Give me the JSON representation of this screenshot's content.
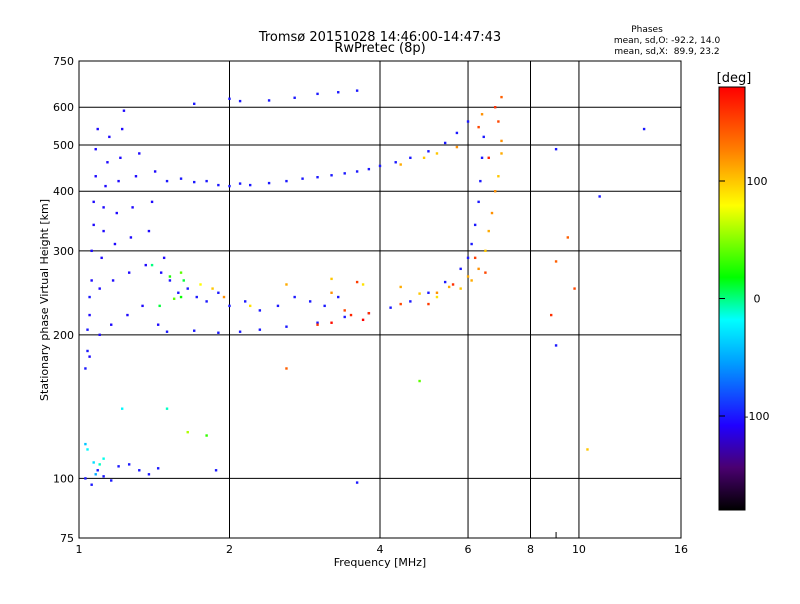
{
  "chart_data": {
    "type": "scatter",
    "title": "Tromsø 20151028 14:46:00-14:47:43",
    "subtitle": "RwPretec (8p)",
    "xlabel": "Frequency [MHz]",
    "ylabel": "Stationary phase Virtual Height [km]",
    "x_scale": "log",
    "y_scale": "log",
    "xlim": [
      1,
      16
    ],
    "ylim": [
      75,
      750
    ],
    "x_ticks": [
      1,
      2,
      4,
      6,
      8,
      10,
      16
    ],
    "x_minor_ticks": [
      9
    ],
    "y_ticks": [
      75,
      100,
      200,
      300,
      400,
      500,
      600,
      750
    ],
    "grid_x": [
      2,
      4,
      6,
      8,
      10
    ],
    "grid_y": [
      100,
      200,
      300,
      400,
      500,
      600
    ],
    "info": {
      "heading": "Phases",
      "line_o": "mean, sd,O: -92.2, 14.0",
      "line_x": "mean, sd,X:  89.9, 23.2"
    },
    "colorbar": {
      "unit": "[deg]",
      "range": [
        -180,
        180
      ],
      "ticks": [
        100,
        0,
        -100
      ],
      "colormap": "rainbow"
    },
    "series": [
      {
        "points": [
          [
            1.05,
            180,
            -105
          ],
          [
            1.05,
            220,
            -105
          ],
          [
            1.06,
            260,
            -105
          ],
          [
            1.06,
            300,
            -105
          ],
          [
            1.07,
            340,
            -105
          ],
          [
            1.07,
            380,
            -105
          ],
          [
            1.08,
            430,
            -105
          ],
          [
            1.08,
            490,
            -105
          ],
          [
            1.09,
            540,
            -105
          ],
          [
            1.1,
            200,
            -105
          ],
          [
            1.1,
            250,
            -105
          ],
          [
            1.11,
            290,
            -105
          ],
          [
            1.12,
            330,
            -105
          ],
          [
            1.12,
            370,
            -105
          ],
          [
            1.13,
            410,
            -105
          ],
          [
            1.14,
            460,
            -105
          ],
          [
            1.15,
            520,
            -105
          ],
          [
            1.16,
            210,
            -105
          ],
          [
            1.17,
            260,
            -105
          ],
          [
            1.18,
            310,
            -105
          ],
          [
            1.19,
            360,
            -105
          ],
          [
            1.2,
            420,
            -105
          ],
          [
            1.21,
            470,
            -105
          ],
          [
            1.22,
            540,
            -105
          ],
          [
            1.23,
            590,
            -105
          ],
          [
            1.25,
            220,
            -105
          ],
          [
            1.26,
            270,
            -105
          ],
          [
            1.27,
            320,
            -105
          ],
          [
            1.28,
            370,
            -105
          ],
          [
            1.3,
            430,
            -105
          ],
          [
            1.32,
            480,
            -105
          ],
          [
            1.34,
            230,
            -105
          ],
          [
            1.36,
            280,
            -105
          ],
          [
            1.38,
            330,
            -105
          ],
          [
            1.4,
            380,
            -105
          ],
          [
            1.42,
            440,
            -105
          ],
          [
            1.44,
            210,
            -105
          ],
          [
            1.46,
            270,
            -105
          ],
          [
            1.48,
            290,
            -105
          ],
          [
            1.03,
            170,
            -100
          ],
          [
            1.04,
            185,
            -100
          ],
          [
            1.04,
            205,
            -100
          ],
          [
            1.05,
            240,
            -100
          ],
          [
            1.52,
            260,
            -100
          ],
          [
            1.58,
            245,
            -100
          ],
          [
            1.65,
            250,
            -100
          ],
          [
            1.72,
            240,
            -100
          ],
          [
            1.8,
            235,
            -100
          ],
          [
            1.9,
            245,
            -100
          ],
          [
            2.0,
            230,
            -100
          ],
          [
            2.15,
            235,
            -100
          ],
          [
            2.3,
            225,
            -100
          ],
          [
            2.5,
            230,
            -100
          ],
          [
            2.7,
            240,
            -100
          ],
          [
            2.9,
            235,
            -100
          ],
          [
            3.1,
            230,
            -100
          ],
          [
            3.3,
            240,
            -100
          ],
          [
            1.5,
            420,
            -100
          ],
          [
            1.6,
            425,
            -100
          ],
          [
            1.7,
            418,
            -100
          ],
          [
            1.8,
            420,
            -100
          ],
          [
            1.9,
            412,
            -100
          ],
          [
            2.0,
            410,
            -100
          ],
          [
            2.1,
            415,
            -100
          ],
          [
            2.2,
            412,
            -100
          ],
          [
            2.4,
            416,
            -100
          ],
          [
            2.6,
            420,
            -100
          ],
          [
            2.8,
            425,
            -100
          ],
          [
            3.0,
            428,
            -100
          ],
          [
            3.2,
            432,
            -100
          ],
          [
            3.4,
            436,
            -100
          ],
          [
            3.6,
            440,
            -100
          ],
          [
            3.8,
            445,
            -100
          ],
          [
            4.0,
            452,
            -100
          ],
          [
            4.3,
            460,
            -100
          ],
          [
            4.6,
            470,
            -100
          ],
          [
            5.0,
            485,
            -100
          ],
          [
            5.4,
            505,
            -100
          ],
          [
            5.7,
            530,
            -100
          ],
          [
            6.0,
            560,
            -100
          ],
          [
            1.7,
            610,
            -100
          ],
          [
            2.0,
            625,
            -100
          ],
          [
            2.1,
            618,
            -100
          ],
          [
            2.4,
            620,
            -100
          ],
          [
            2.7,
            628,
            -100
          ],
          [
            3.0,
            640,
            -100
          ],
          [
            3.3,
            645,
            -100
          ],
          [
            3.6,
            650,
            -100
          ],
          [
            1.5,
            203,
            -100
          ],
          [
            1.7,
            204,
            -100
          ],
          [
            1.9,
            202,
            -100
          ],
          [
            2.1,
            203,
            -100
          ],
          [
            2.3,
            205,
            -100
          ],
          [
            2.6,
            208,
            -100
          ],
          [
            3.0,
            212,
            -100
          ],
          [
            3.4,
            218,
            -100
          ],
          [
            3.8,
            222,
            -100
          ],
          [
            4.2,
            228,
            -100
          ],
          [
            4.6,
            235,
            -100
          ],
          [
            5.0,
            245,
            -100
          ],
          [
            5.4,
            258,
            -100
          ],
          [
            5.8,
            275,
            -100
          ],
          [
            6.0,
            290,
            -100
          ],
          [
            6.1,
            310,
            -100
          ],
          [
            6.2,
            340,
            -100
          ],
          [
            6.3,
            380,
            -100
          ],
          [
            6.35,
            420,
            -100
          ],
          [
            6.4,
            470,
            -100
          ],
          [
            6.45,
            520,
            -100
          ],
          [
            1.03,
            100,
            -100
          ],
          [
            1.06,
            97,
            -100
          ],
          [
            1.09,
            104,
            -100
          ],
          [
            1.12,
            101,
            -100
          ],
          [
            1.16,
            99,
            -100
          ],
          [
            1.2,
            106,
            -100
          ],
          [
            1.26,
            107,
            -100
          ],
          [
            1.32,
            104,
            -100
          ],
          [
            1.38,
            102,
            -100
          ],
          [
            1.44,
            105,
            -100
          ],
          [
            1.88,
            104,
            -100
          ],
          [
            3.6,
            98,
            -100
          ],
          [
            9.0,
            190,
            -100
          ],
          [
            13.5,
            540,
            -100
          ],
          [
            11.0,
            390,
            -100
          ],
          [
            9.0,
            490,
            -100
          ]
        ]
      },
      {
        "points": [
          [
            1.6,
            270,
            40
          ],
          [
            1.62,
            260,
            10
          ],
          [
            1.75,
            255,
            80
          ],
          [
            1.85,
            250,
            100
          ],
          [
            1.95,
            240,
            120
          ],
          [
            2.2,
            230,
            90
          ],
          [
            2.6,
            255,
            110
          ],
          [
            3.2,
            262,
            100
          ],
          [
            3.2,
            245,
            120
          ],
          [
            3.7,
            255,
            90
          ],
          [
            4.4,
            252,
            110
          ],
          [
            4.8,
            244,
            100
          ],
          [
            5.2,
            245,
            120
          ],
          [
            5.5,
            252,
            110
          ],
          [
            6.1,
            260,
            110
          ],
          [
            6.3,
            275,
            120
          ],
          [
            6.5,
            300,
            100
          ],
          [
            6.6,
            330,
            110
          ],
          [
            6.7,
            360,
            120
          ],
          [
            6.8,
            400,
            120
          ],
          [
            6.9,
            430,
            100
          ],
          [
            7.0,
            480,
            110
          ],
          [
            7.0,
            510,
            120
          ],
          [
            6.9,
            560,
            150
          ],
          [
            7.0,
            630,
            140
          ],
          [
            4.4,
            455,
            110
          ],
          [
            4.9,
            470,
            100
          ],
          [
            5.2,
            480,
            100
          ],
          [
            5.7,
            495,
            120
          ],
          [
            6.3,
            545,
            150
          ],
          [
            6.4,
            580,
            120
          ],
          [
            5.2,
            240,
            90
          ],
          [
            5.8,
            250,
            100
          ],
          [
            6.0,
            265,
            110
          ],
          [
            9.0,
            285,
            140
          ],
          [
            9.5,
            320,
            140
          ],
          [
            9.8,
            250,
            150
          ],
          [
            10.4,
            115,
            100
          ]
        ]
      },
      {
        "points": [
          [
            1.45,
            230,
            10
          ],
          [
            1.55,
            238,
            40
          ],
          [
            1.6,
            240,
            20
          ],
          [
            1.65,
            125,
            60
          ],
          [
            1.8,
            123,
            30
          ],
          [
            2.6,
            170,
            140
          ],
          [
            4.8,
            160,
            40
          ],
          [
            1.4,
            280,
            0
          ],
          [
            1.52,
            265,
            25
          ]
        ]
      },
      {
        "points": [
          [
            3.0,
            210,
            160
          ],
          [
            3.2,
            212,
            175
          ],
          [
            3.5,
            220,
            165
          ],
          [
            3.6,
            258,
            155
          ],
          [
            3.7,
            215,
            180
          ],
          [
            3.8,
            222,
            160
          ],
          [
            4.4,
            232,
            150
          ],
          [
            5.0,
            232,
            155
          ],
          [
            6.2,
            290,
            155
          ],
          [
            6.5,
            270,
            150
          ],
          [
            6.6,
            470,
            165
          ],
          [
            6.8,
            600,
            160
          ],
          [
            8.8,
            220,
            160
          ],
          [
            3.4,
            225,
            150
          ],
          [
            5.6,
            255,
            160
          ]
        ]
      },
      {
        "points": [
          [
            1.03,
            118,
            -40
          ],
          [
            1.04,
            115,
            -20
          ],
          [
            1.07,
            108,
            -30
          ],
          [
            1.1,
            107,
            -10
          ],
          [
            1.12,
            110,
            -15
          ],
          [
            1.22,
            140,
            -20
          ],
          [
            1.5,
            140,
            -10
          ],
          [
            1.08,
            102,
            -50
          ]
        ]
      }
    ]
  }
}
